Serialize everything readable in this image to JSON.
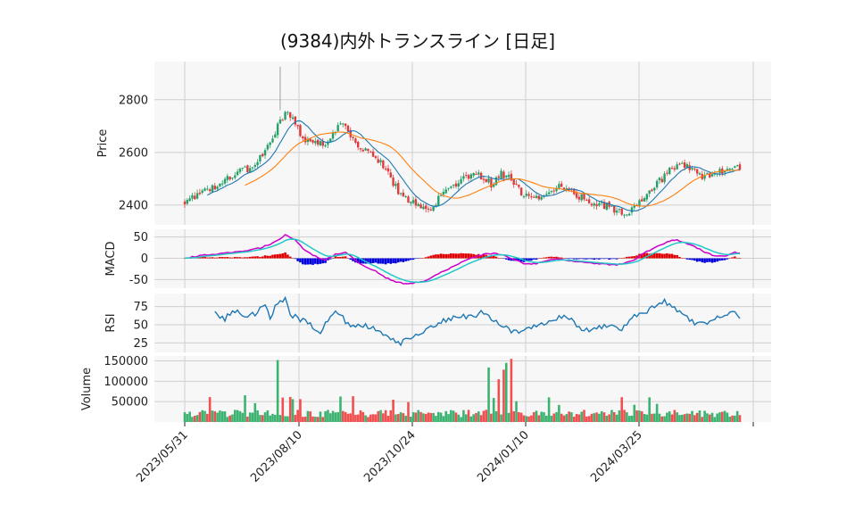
{
  "title": "(9384)内外トランスライン [日足]",
  "chart_data": {
    "type": "candlestick",
    "x_tick_labels": [
      "2023/05/31",
      "2023/08/10",
      "2023/10/24",
      "2024/01/10",
      "2024/03/25"
    ],
    "panels": {
      "price": {
        "ylabel": "Price",
        "yticks": [
          2400,
          2600,
          2800
        ],
        "ylim": [
          2325,
          2945
        ],
        "series": [
          "candles",
          "ma_short",
          "ma_long"
        ],
        "colors": {
          "up": "#26a069",
          "down": "#e03a3a",
          "ma_short": "#1f77b4",
          "ma_long": "#ff7f0e"
        }
      },
      "macd": {
        "ylabel": "MACD",
        "yticks": [
          -50,
          0,
          50
        ],
        "ylim": [
          -70,
          68
        ],
        "colors": {
          "macd": "#cc00cc",
          "signal": "#22c7c7",
          "hist_pos": "#e00000",
          "hist_neg": "#0000dd"
        }
      },
      "rsi": {
        "ylabel": "RSI",
        "yticks": [
          25,
          50,
          75
        ],
        "ylim": [
          12,
          93
        ],
        "color": "#1f77b4"
      },
      "volume": {
        "ylabel": "Volume",
        "yticks": [
          50000,
          100000,
          150000
        ],
        "ylim": [
          0,
          162000
        ],
        "colors": {
          "up": "#3cb371",
          "down": "#f05050"
        }
      }
    },
    "price_keypoints": [
      [
        0,
        2415
      ],
      [
        5,
        2440
      ],
      [
        12,
        2470
      ],
      [
        20,
        2520
      ],
      [
        26,
        2540
      ],
      [
        30,
        2580
      ],
      [
        35,
        2650
      ],
      [
        38,
        2720
      ],
      [
        41,
        2760
      ],
      [
        44,
        2700
      ],
      [
        48,
        2650
      ],
      [
        52,
        2640
      ],
      [
        56,
        2620
      ],
      [
        60,
        2690
      ],
      [
        63,
        2720
      ],
      [
        66,
        2660
      ],
      [
        70,
        2620
      ],
      [
        74,
        2590
      ],
      [
        78,
        2560
      ],
      [
        82,
        2500
      ],
      [
        86,
        2440
      ],
      [
        90,
        2410
      ],
      [
        94,
        2395
      ],
      [
        98,
        2385
      ],
      [
        102,
        2440
      ],
      [
        106,
        2460
      ],
      [
        110,
        2490
      ],
      [
        114,
        2520
      ],
      [
        118,
        2510
      ],
      [
        122,
        2480
      ],
      [
        126,
        2520
      ],
      [
        130,
        2500
      ],
      [
        134,
        2450
      ],
      [
        138,
        2420
      ],
      [
        142,
        2440
      ],
      [
        146,
        2460
      ],
      [
        150,
        2470
      ],
      [
        154,
        2450
      ],
      [
        158,
        2430
      ],
      [
        162,
        2410
      ],
      [
        166,
        2400
      ],
      [
        170,
        2390
      ],
      [
        174,
        2370
      ],
      [
        178,
        2380
      ],
      [
        182,
        2420
      ],
      [
        186,
        2460
      ],
      [
        190,
        2500
      ],
      [
        194,
        2540
      ],
      [
        198,
        2560
      ],
      [
        202,
        2530
      ],
      [
        206,
        2510
      ],
      [
        210,
        2520
      ],
      [
        214,
        2530
      ],
      [
        218,
        2550
      ],
      [
        221,
        2545
      ]
    ],
    "rsi_keypoints": [
      [
        12,
        65
      ],
      [
        16,
        58
      ],
      [
        20,
        70
      ],
      [
        24,
        60
      ],
      [
        28,
        66
      ],
      [
        32,
        75
      ],
      [
        34,
        60
      ],
      [
        37,
        82
      ],
      [
        40,
        84
      ],
      [
        42,
        65
      ],
      [
        46,
        58
      ],
      [
        50,
        50
      ],
      [
        54,
        40
      ],
      [
        56,
        52
      ],
      [
        60,
        66
      ],
      [
        62,
        62
      ],
      [
        66,
        48
      ],
      [
        70,
        52
      ],
      [
        74,
        46
      ],
      [
        78,
        40
      ],
      [
        82,
        30
      ],
      [
        86,
        24
      ],
      [
        90,
        34
      ],
      [
        94,
        40
      ],
      [
        98,
        46
      ],
      [
        102,
        55
      ],
      [
        106,
        58
      ],
      [
        110,
        64
      ],
      [
        114,
        60
      ],
      [
        118,
        68
      ],
      [
        122,
        58
      ],
      [
        126,
        50
      ],
      [
        130,
        42
      ],
      [
        134,
        40
      ],
      [
        138,
        44
      ],
      [
        142,
        52
      ],
      [
        146,
        56
      ],
      [
        150,
        62
      ],
      [
        154,
        55
      ],
      [
        158,
        44
      ],
      [
        162,
        42
      ],
      [
        166,
        48
      ],
      [
        170,
        52
      ],
      [
        174,
        44
      ],
      [
        178,
        60
      ],
      [
        182,
        66
      ],
      [
        186,
        72
      ],
      [
        190,
        82
      ],
      [
        194,
        78
      ],
      [
        198,
        62
      ],
      [
        202,
        55
      ],
      [
        206,
        50
      ],
      [
        210,
        54
      ],
      [
        214,
        62
      ],
      [
        218,
        70
      ],
      [
        221,
        55
      ]
    ],
    "macd_keypoints": [
      [
        0,
        0
      ],
      [
        8,
        8
      ],
      [
        16,
        12
      ],
      [
        24,
        18
      ],
      [
        30,
        24
      ],
      [
        36,
        38
      ],
      [
        40,
        55
      ],
      [
        44,
        42
      ],
      [
        48,
        18
      ],
      [
        52,
        5
      ],
      [
        56,
        -4
      ],
      [
        60,
        10
      ],
      [
        64,
        14
      ],
      [
        68,
        -5
      ],
      [
        72,
        -20
      ],
      [
        76,
        -30
      ],
      [
        80,
        -45
      ],
      [
        84,
        -55
      ],
      [
        88,
        -60
      ],
      [
        92,
        -57
      ],
      [
        96,
        -52
      ],
      [
        100,
        -38
      ],
      [
        104,
        -28
      ],
      [
        108,
        -15
      ],
      [
        112,
        -4
      ],
      [
        116,
        4
      ],
      [
        120,
        10
      ],
      [
        124,
        12
      ],
      [
        128,
        5
      ],
      [
        132,
        -5
      ],
      [
        136,
        -14
      ],
      [
        140,
        -12
      ],
      [
        144,
        -6
      ],
      [
        148,
        -2
      ],
      [
        152,
        -5
      ],
      [
        156,
        -8
      ],
      [
        160,
        -10
      ],
      [
        164,
        -12
      ],
      [
        168,
        -14
      ],
      [
        172,
        -16
      ],
      [
        176,
        -10
      ],
      [
        180,
        0
      ],
      [
        184,
        16
      ],
      [
        188,
        28
      ],
      [
        192,
        38
      ],
      [
        196,
        44
      ],
      [
        200,
        34
      ],
      [
        204,
        24
      ],
      [
        208,
        12
      ],
      [
        212,
        4
      ],
      [
        216,
        6
      ],
      [
        219,
        14
      ],
      [
        221,
        12
      ]
    ]
  }
}
